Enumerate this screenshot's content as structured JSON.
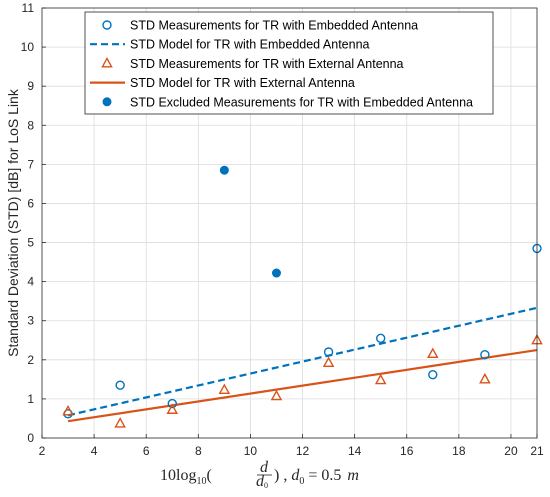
{
  "chart_data": {
    "type": "scatter",
    "xlabel": "10log10(d/d0) , d0 = 0.5 m",
    "ylabel": "Standard Deviation (STD) [dB] for LoS Link",
    "xlim": [
      2,
      21
    ],
    "ylim": [
      0,
      11
    ],
    "xticks": [
      2,
      4,
      6,
      8,
      10,
      12,
      14,
      16,
      18,
      20,
      21
    ],
    "yticks": [
      0,
      1,
      2,
      3,
      4,
      5,
      6,
      7,
      8,
      9,
      10,
      11
    ],
    "grid": true,
    "legend_position": "top-left",
    "series": [
      {
        "name": "STD Measurements for TR with Embedded Antenna",
        "kind": "scatter",
        "marker": "circle-open",
        "color": "#0072BD",
        "x": [
          3,
          5,
          7,
          13,
          15,
          17,
          19,
          21
        ],
        "y": [
          0.62,
          1.35,
          0.88,
          2.2,
          2.55,
          1.62,
          2.13,
          4.85
        ]
      },
      {
        "name": "STD Model for TR with Embedded Antenna",
        "kind": "line",
        "dash": true,
        "color": "#0072BD",
        "x": [
          3,
          21
        ],
        "y": [
          0.58,
          3.33
        ]
      },
      {
        "name": "STD Measurements for TR with External Antenna",
        "kind": "scatter",
        "marker": "triangle-open",
        "color": "#D95319",
        "x": [
          3,
          5,
          7,
          9,
          11,
          13,
          15,
          17,
          19,
          21
        ],
        "y": [
          0.68,
          0.37,
          0.72,
          1.23,
          1.07,
          1.92,
          1.48,
          2.15,
          1.5,
          2.5
        ]
      },
      {
        "name": "STD Model for TR with External Antenna",
        "kind": "line",
        "dash": false,
        "color": "#D95319",
        "x": [
          3,
          21
        ],
        "y": [
          0.43,
          2.25
        ]
      },
      {
        "name": "STD Excluded Measurements for TR with Embedded Antenna",
        "kind": "scatter",
        "marker": "circle-filled",
        "color": "#0072BD",
        "x": [
          9,
          11
        ],
        "y": [
          6.85,
          4.22
        ]
      }
    ]
  }
}
